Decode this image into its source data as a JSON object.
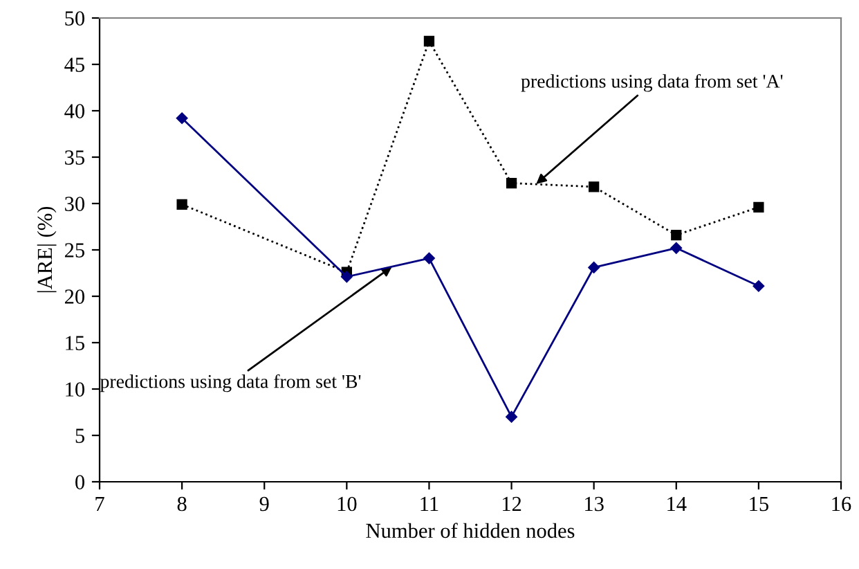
{
  "chart_data": {
    "type": "line",
    "xlabel": "Number of hidden nodes",
    "ylabel": "|ARE| (%)",
    "x": [
      8,
      10,
      11,
      12,
      13,
      14,
      15
    ],
    "series": [
      {
        "color": "#000080",
        "values": [
          39.2,
          22.1,
          24.1,
          7.0,
          23.1,
          25.2,
          21.1
        ],
        "marker": "diamond",
        "line_style": "solid"
      },
      {
        "color": "#000000",
        "values": [
          29.9,
          22.6,
          47.5,
          32.2,
          31.8,
          26.6,
          29.6
        ],
        "marker": "square",
        "line_style": "dotted"
      }
    ],
    "annotations": [
      {
        "text": "predictions using data from set 'A'",
        "x": 12.3,
        "y": 32.1
      },
      {
        "text": "predictions using data from set 'B'",
        "x": 10.55,
        "y": 23.2
      }
    ],
    "xlim": [
      7,
      16
    ],
    "xticks": [
      7,
      8,
      9,
      10,
      11,
      12,
      13,
      14,
      15,
      16
    ],
    "ylim": [
      0,
      50
    ],
    "yticks": [
      0,
      5,
      10,
      15,
      20,
      25,
      30,
      35,
      40,
      45,
      50
    ],
    "grid": false,
    "legend": false
  }
}
